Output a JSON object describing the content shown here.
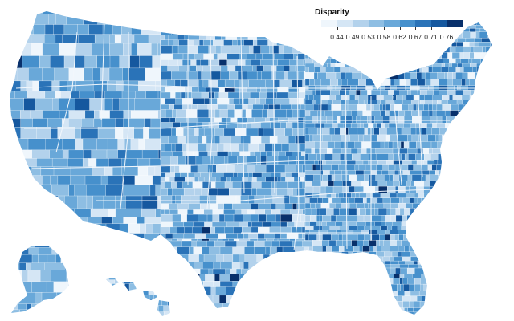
{
  "legend": {
    "title": "Disparity",
    "ticks": [
      "0.44",
      "0.49",
      "0.53",
      "0.58",
      "0.62",
      "0.67",
      "0.71",
      "0.76"
    ],
    "colors": [
      "#eff6fc",
      "#d5e6f5",
      "#b3d2ec",
      "#8ebee3",
      "#69a8d9",
      "#4690cc",
      "#2a73b8",
      "#15589f",
      "#08306b"
    ]
  },
  "map": {
    "region": "United States counties",
    "border_color": "#ffffff",
    "state_border_color": "#f2f7fc",
    "palette_seed": 7
  }
}
